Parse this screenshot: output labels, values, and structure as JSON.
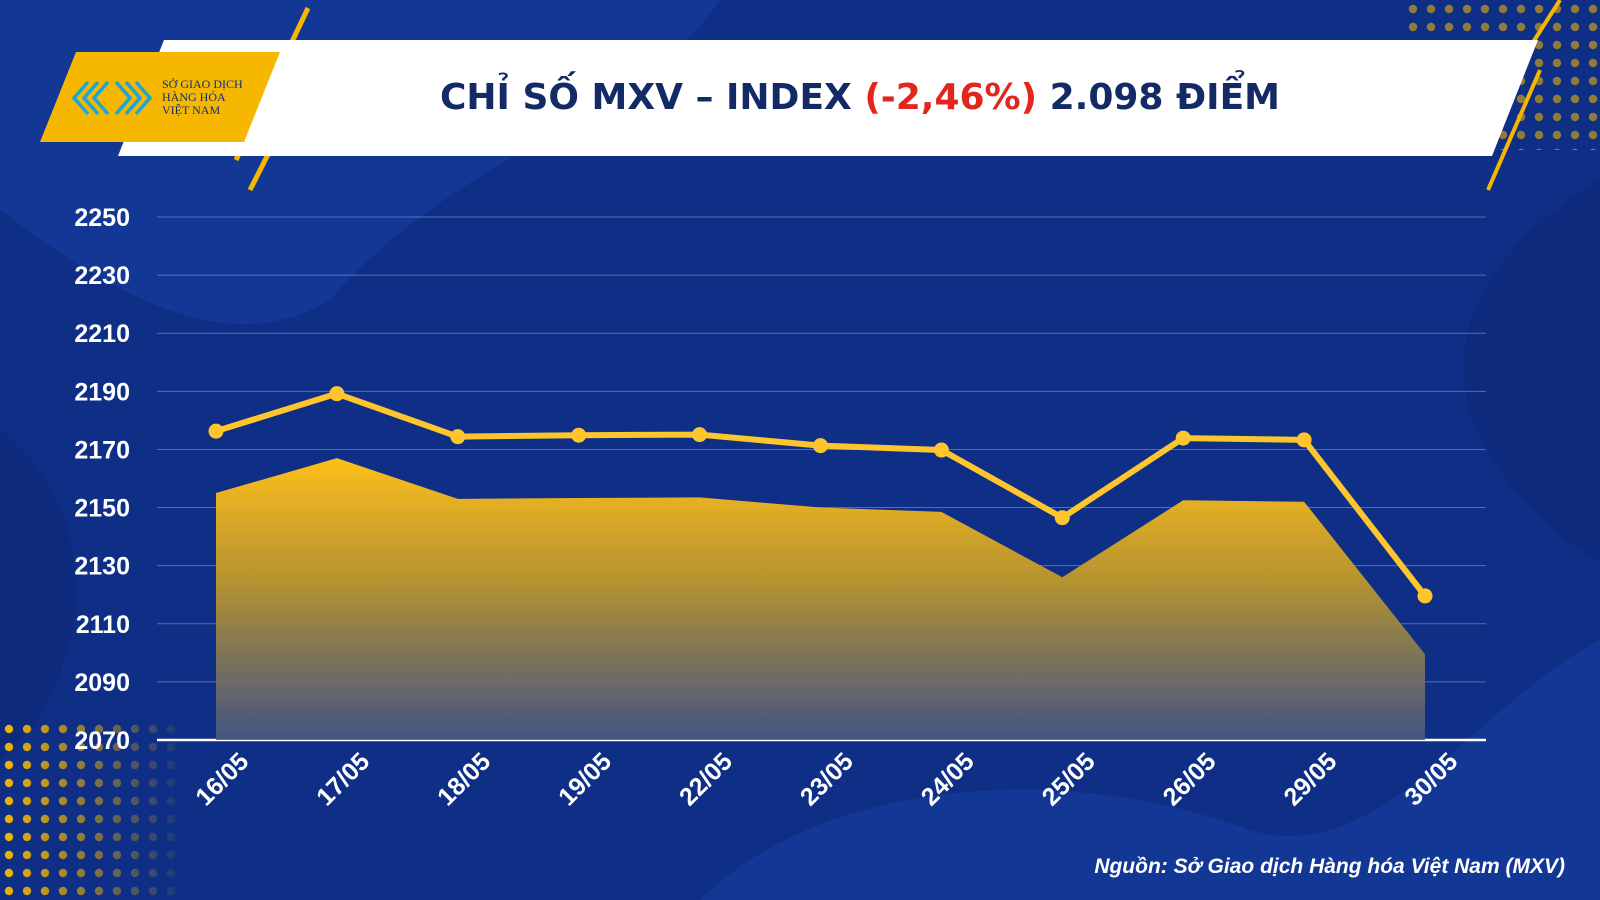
{
  "header": {
    "logo": {
      "line1": "SỞ GIAO DỊCH",
      "line2": "HÀNG HÓA",
      "line3": "VIỆT NAM"
    },
    "title_prefix": "CHỈ SỐ MXV – INDEX ",
    "title_change": "(-2,46%)",
    "title_suffix": " 2.098 ĐIỂM"
  },
  "colors": {
    "background": "#0f2f86",
    "accent_yellow": "#f5b700",
    "line": "#ffc52c",
    "negative": "#e2261c",
    "title_text": "#132a66"
  },
  "chart_data": {
    "type": "line",
    "categories": [
      "16/05",
      "17/05",
      "18/05",
      "19/05",
      "22/05",
      "23/05",
      "24/05",
      "25/05",
      "26/05",
      "29/05",
      "30/05"
    ],
    "series": [
      {
        "values": [
          2176.3,
          2189.2,
          2174.4,
          2174.9,
          2175.1,
          2171.3,
          2169.8,
          2146.5,
          2173.9,
          2173.3,
          2119.6
        ],
        "style": "line with markers"
      },
      {
        "values": [
          2155,
          2167,
          2153,
          2153.3,
          2153.5,
          2150,
          2148.5,
          2126,
          2152.5,
          2152,
          2099.5
        ],
        "style": "area with yellow-to-gray gradient fill"
      }
    ],
    "yticks": [
      2070,
      2090,
      2110,
      2130,
      2150,
      2170,
      2190,
      2210,
      2230,
      2250
    ],
    "ylim": [
      2070,
      2250
    ],
    "grid": true,
    "xtick_rotation": "-45deg"
  },
  "footer": {
    "source": "Nguồn: Sở Giao dịch Hàng hóa Việt Nam (MXV)"
  }
}
